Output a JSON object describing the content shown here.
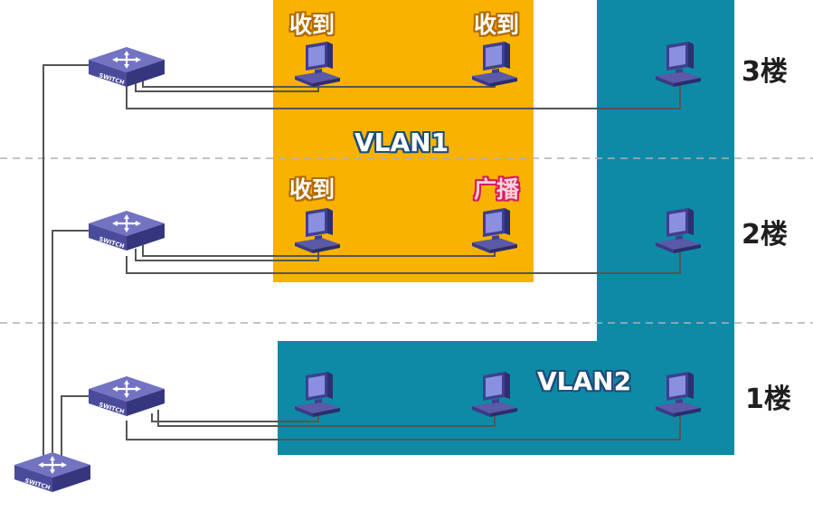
{
  "floors": [
    {
      "id": "f3",
      "label": "3楼"
    },
    {
      "id": "f2",
      "label": "2楼"
    },
    {
      "id": "f1",
      "label": "1楼"
    }
  ],
  "vlans": [
    {
      "id": "vlan1",
      "label": "VLAN1",
      "color": "#f9b200"
    },
    {
      "id": "vlan2",
      "label": "VLAN2",
      "color": "#0e8aa6"
    }
  ],
  "switches": [
    {
      "id": "sw3",
      "label": "SWITCH"
    },
    {
      "id": "sw2",
      "label": "SWITCH"
    },
    {
      "id": "sw1",
      "label": "SWITCH"
    },
    {
      "id": "core",
      "label": "SWITCH"
    }
  ],
  "hosts": [
    {
      "id": "h3a",
      "floor": "3楼",
      "vlan": "VLAN1",
      "status": "收到"
    },
    {
      "id": "h3b",
      "floor": "3楼",
      "vlan": "VLAN1",
      "status": "收到"
    },
    {
      "id": "h3c",
      "floor": "3楼",
      "vlan": "VLAN2",
      "status": ""
    },
    {
      "id": "h2a",
      "floor": "2楼",
      "vlan": "VLAN1",
      "status": "收到"
    },
    {
      "id": "h2b",
      "floor": "2楼",
      "vlan": "VLAN1",
      "status": "广播"
    },
    {
      "id": "h2c",
      "floor": "2楼",
      "vlan": "VLAN2",
      "status": ""
    },
    {
      "id": "h1a",
      "floor": "1楼",
      "vlan": "VLAN2",
      "status": ""
    },
    {
      "id": "h1b",
      "floor": "1楼",
      "vlan": "VLAN2",
      "status": ""
    },
    {
      "id": "h1c",
      "floor": "1楼",
      "vlan": "VLAN2",
      "status": ""
    }
  ],
  "colors": {
    "switch_top": "#6a6ab8",
    "switch_side": "#3d3d8a",
    "pc_screen": "#7a7fd0",
    "pc_body": "#4a4a9a",
    "cable": "#555555",
    "divider": "#b5b5b5"
  }
}
